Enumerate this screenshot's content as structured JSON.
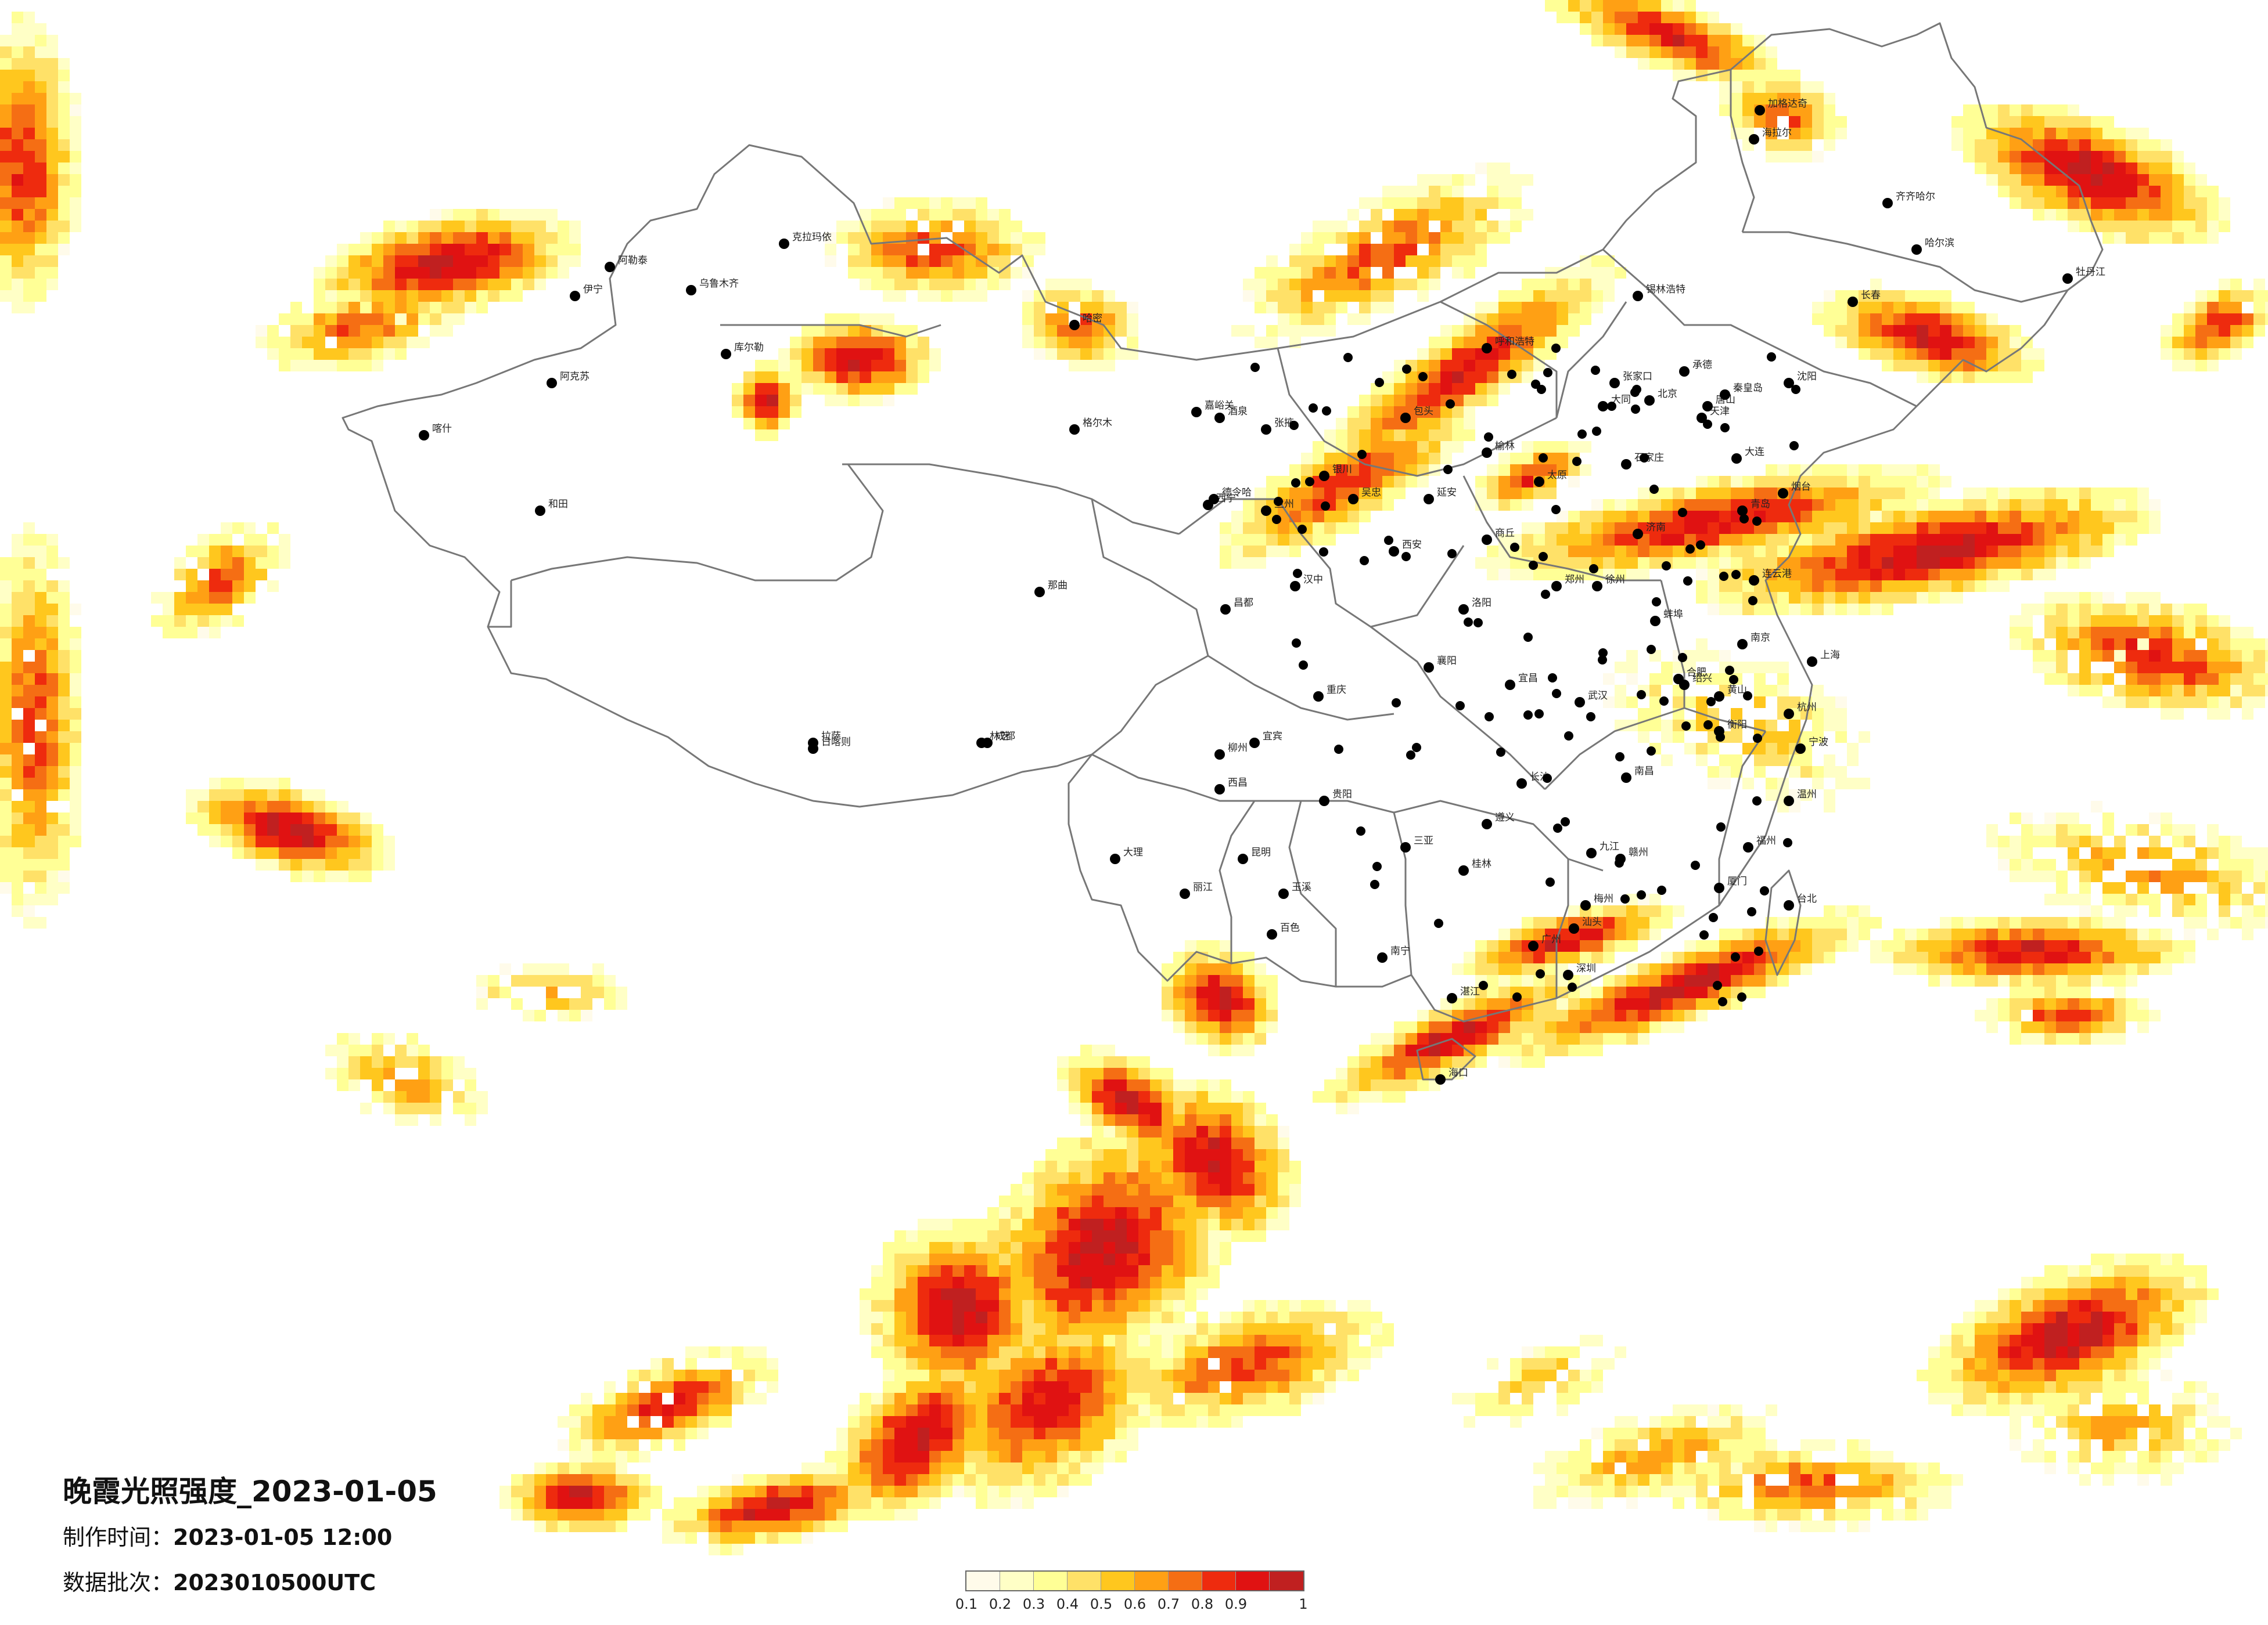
{
  "title": "晚霞光照强度_2023-01-05",
  "produce_time_label": "制作时间：",
  "produce_time_value": "2023-01-05 12:00",
  "batch_label": "数据批次：",
  "batch_value": "2023010500UTC",
  "legend": {
    "ticks": [
      "0.1",
      "0.2",
      "0.3",
      "0.4",
      "0.5",
      "0.6",
      "0.7",
      "0.8",
      "0.9",
      "1"
    ],
    "colors": [
      "#fffbea",
      "#ffffc6",
      "#ffff96",
      "#ffe168",
      "#ffc71e",
      "#ffa014",
      "#f56e14",
      "#ee2b0e",
      "#e01212",
      "#c02020"
    ]
  },
  "cities": [
    "哈尔滨",
    "长春",
    "沈阳",
    "大连",
    "北京",
    "天津",
    "石家庄",
    "太原",
    "呼和浩特",
    "济南",
    "青岛",
    "郑州",
    "西安",
    "兰州",
    "西宁",
    "银川",
    "乌鲁木齐",
    "拉萨",
    "成都",
    "重庆",
    "贵阳",
    "昆明",
    "南宁",
    "广州",
    "深圳",
    "海口",
    "长沙",
    "武汉",
    "南昌",
    "合肥",
    "南京",
    "上海",
    "杭州",
    "福州",
    "台北",
    "克拉玛依",
    "伊宁",
    "阿克苏",
    "喀什",
    "和田",
    "格尔木",
    "日喀则",
    "林芝",
    "德令哈",
    "加格达奇",
    "海拉尔",
    "齐齐哈尔",
    "牡丹江",
    "锡林浩特",
    "包头",
    "延安",
    "汉中",
    "宜宾",
    "大理",
    "桂林",
    "赣州",
    "厦门",
    "温州",
    "宁波",
    "连云港",
    "烟台",
    "唐山",
    "秦皇岛",
    "承德",
    "张家口",
    "大同",
    "榆林",
    "吴忠",
    "张掖",
    "酒泉",
    "嘉峪关",
    "阿勒泰",
    "哈密",
    "库尔勒",
    "那曲",
    "昌都",
    "西昌",
    "丽江",
    "玉溪",
    "百色",
    "湛江",
    "汕头",
    "梅州",
    "九江",
    "宜昌",
    "襄阳",
    "洛阳",
    "商丘",
    "徐州",
    "蚌埠",
    "绍兴",
    "黄山",
    "衡阳",
    "遵义",
    "柳州",
    "三亚"
  ]
}
